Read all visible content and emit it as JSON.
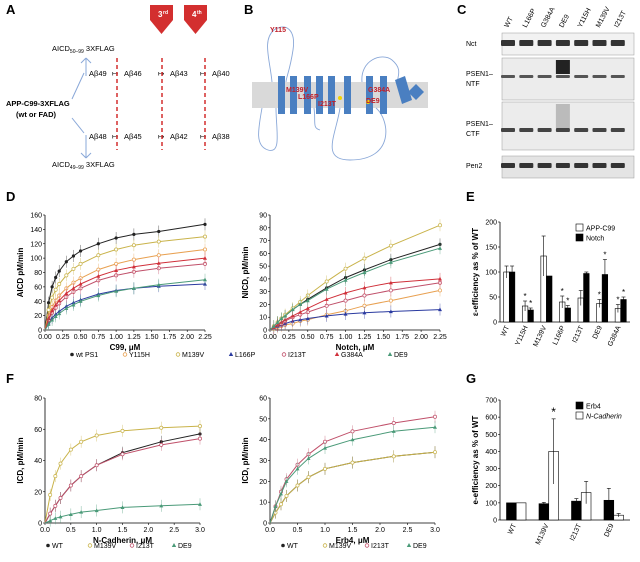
{
  "panels": {
    "A": "A",
    "B": "B",
    "C": "C",
    "D": "D",
    "E": "E",
    "F": "F",
    "G": "G"
  },
  "panelA": {
    "top_construct": "AICD",
    "top_sub": "50–99",
    "top_tag": " 3XFLAG",
    "bottom_construct": "AICD",
    "bottom_sub": "49–99",
    "bottom_tag": " 3XFLAG",
    "substrate_line1": "APP-C99-3XFLAG",
    "substrate_line2": "(wt or FAD)",
    "line_top": [
      "Aβ49",
      "Aβ46",
      "Aβ43",
      "Aβ40"
    ],
    "line_bottom": [
      "Aβ48",
      "Aβ45",
      "Aβ42",
      "Aβ38"
    ],
    "cut_labels": [
      "3",
      "4"
    ],
    "cut_sup": [
      "rd",
      "th"
    ],
    "arrow_color": "#d32f2f"
  },
  "panelB": {
    "labels": [
      "Y115",
      "M139V",
      "L166P",
      "I213T",
      "G384A",
      "DE9"
    ],
    "tm_color": "#4a7fc1"
  },
  "panelC": {
    "lanes": [
      "WT",
      "L166P",
      "G384A",
      "DE9",
      "Y115H",
      "M139V",
      "I213T"
    ],
    "rows": [
      "Nct",
      "PSEN1–\nNTF",
      "PSEN1–\nCTF",
      "Pen2"
    ],
    "row_labels": [
      "Nct",
      "PSEN1–",
      "NTF",
      "PSEN1–",
      "CTF",
      "Pen2"
    ]
  },
  "panelD_legend": [
    "wt PS1",
    "Y115H",
    "M139V",
    "L166P",
    "I213T",
    "G384A",
    "DE9"
  ],
  "panelF_left_legend": [
    "WT",
    "M139V",
    "I213T",
    "DE9"
  ],
  "panelF_right_legend": [
    "WT",
    "M139V",
    "I213T",
    "DE9"
  ],
  "series_colors": {
    "wt": "#222222",
    "Y115H": "#e8a050",
    "M139V": "#c9b34a",
    "L166P": "#2a3aa0",
    "I213T": "#c0506a",
    "G384A": "#d0303a",
    "DE9": "#4a9a78"
  },
  "chart_data": [
    {
      "type": "line",
      "id": "D-left",
      "xlabel": "C99, μM",
      "ylabel": "AICD pM/min",
      "xlim": [
        0,
        2.25
      ],
      "ylim": [
        0,
        160
      ],
      "xticks": [
        "0.00",
        "0.25",
        "0.50",
        "0.75",
        "1.00",
        "1.25",
        "1.50",
        "1.75",
        "2.00",
        "2.25"
      ],
      "yticks": [
        "0",
        "20",
        "40",
        "60",
        "80",
        "100",
        "120",
        "140",
        "160"
      ],
      "x": [
        0.05,
        0.1,
        0.15,
        0.2,
        0.3,
        0.4,
        0.5,
        0.75,
        1.0,
        1.25,
        1.6,
        2.25
      ],
      "series": [
        {
          "name": "wt PS1",
          "values": [
            38,
            60,
            73,
            82,
            95,
            103,
            110,
            120,
            128,
            133,
            137,
            147
          ]
        },
        {
          "name": "Y115H",
          "values": [
            20,
            32,
            41,
            48,
            58,
            66,
            72,
            84,
            92,
            98,
            104,
            112
          ]
        },
        {
          "name": "M139V",
          "values": [
            28,
            45,
            56,
            64,
            76,
            85,
            92,
            104,
            112,
            118,
            123,
            130
          ]
        },
        {
          "name": "L166P",
          "values": [
            10,
            17,
            22,
            26,
            33,
            38,
            42,
            50,
            55,
            58,
            61,
            64
          ]
        },
        {
          "name": "I213T",
          "values": [
            14,
            24,
            31,
            37,
            46,
            53,
            58,
            69,
            76,
            81,
            86,
            92
          ]
        },
        {
          "name": "G384A",
          "values": [
            16,
            27,
            35,
            41,
            51,
            58,
            64,
            75,
            83,
            88,
            93,
            100
          ]
        },
        {
          "name": "DE9",
          "values": [
            8,
            14,
            19,
            23,
            30,
            35,
            40,
            48,
            54,
            58,
            63,
            70
          ]
        }
      ]
    },
    {
      "type": "line",
      "id": "D-right",
      "xlabel": "Notch, μM",
      "ylabel": "NICD, pM/min",
      "xlim": [
        0,
        2.25
      ],
      "ylim": [
        0,
        90
      ],
      "xticks": [
        "0.00",
        "0.25",
        "0.50",
        "0.75",
        "1.00",
        "1.25",
        "1.50",
        "1.75",
        "2.00",
        "2.25"
      ],
      "yticks": [
        "0",
        "10",
        "20",
        "30",
        "40",
        "50",
        "60",
        "70",
        "80",
        "90"
      ],
      "x": [
        0.05,
        0.1,
        0.15,
        0.2,
        0.3,
        0.4,
        0.5,
        0.75,
        1.0,
        1.25,
        1.6,
        2.25
      ],
      "series": [
        {
          "name": "wt PS1",
          "values": [
            3,
            6,
            9,
            11,
            16,
            20,
            24,
            33,
            41,
            47,
            55,
            67
          ]
        },
        {
          "name": "Y115H",
          "values": [
            1,
            2,
            3,
            4,
            5,
            7,
            8,
            12,
            15,
            19,
            23,
            31
          ]
        },
        {
          "name": "M139V",
          "values": [
            3,
            6,
            9,
            12,
            17,
            22,
            27,
            38,
            48,
            56,
            66,
            82
          ]
        },
        {
          "name": "L166P",
          "values": [
            1.5,
            3,
            4,
            5,
            7,
            8,
            9,
            11,
            12.5,
            13.5,
            14.5,
            16
          ]
        },
        {
          "name": "I213T",
          "values": [
            2,
            4,
            5,
            7,
            10,
            12,
            14,
            19,
            23,
            27,
            31,
            37
          ]
        },
        {
          "name": "G384A",
          "values": [
            2,
            4,
            6,
            8,
            11,
            14,
            17,
            24,
            29,
            33,
            37,
            40
          ]
        },
        {
          "name": "DE9",
          "values": [
            3,
            6,
            9,
            11,
            16,
            20,
            23,
            32,
            39,
            45,
            53,
            64
          ]
        }
      ]
    },
    {
      "type": "bar",
      "id": "E",
      "ylabel": "ε-efficiency as % of WT",
      "ylim": [
        0,
        200
      ],
      "yticks": [
        "0",
        "50",
        "100",
        "150",
        "200"
      ],
      "categories": [
        "WT",
        "Y115H",
        "M139V",
        "L166P",
        "I213T",
        "DE9",
        "G384A"
      ],
      "legend": [
        "APP-C99",
        "Notch"
      ],
      "series": [
        {
          "name": "APP-C99",
          "values": [
            100,
            32,
            132,
            40,
            48,
            37,
            27
          ],
          "errors": [
            12,
            10,
            40,
            12,
            15,
            8,
            8
          ]
        },
        {
          "name": "Notch",
          "values": [
            100,
            24,
            92,
            28,
            97,
            95,
            45
          ],
          "errors": [
            12,
            4,
            0,
            5,
            3,
            30,
            5
          ]
        }
      ],
      "stars_index": [
        1,
        3,
        5,
        6
      ]
    },
    {
      "type": "line",
      "id": "F-left",
      "xlabel": "N-Cadherin, μM",
      "ylabel": "ICD, pM/min",
      "xlim": [
        0,
        3.0
      ],
      "ylim": [
        0,
        80
      ],
      "xticks": [
        "0.0",
        "0.5",
        "1.0",
        "1.5",
        "2.0",
        "2.5",
        "3.0"
      ],
      "yticks": [
        "0",
        "20",
        "40",
        "60",
        "80"
      ],
      "x": [
        0.1,
        0.2,
        0.3,
        0.5,
        0.7,
        1.0,
        1.5,
        2.25,
        3.0
      ],
      "series": [
        {
          "name": "WT",
          "values": [
            6,
            11,
            16,
            24,
            30,
            37,
            45,
            52,
            57
          ]
        },
        {
          "name": "M139V",
          "values": [
            18,
            30,
            38,
            47,
            52,
            56,
            59,
            61,
            62
          ]
        },
        {
          "name": "I213T",
          "values": [
            6,
            11,
            16,
            24,
            30,
            37,
            44,
            50,
            54
          ]
        },
        {
          "name": "DE9",
          "values": [
            1.5,
            3,
            4,
            5.5,
            7,
            8,
            10,
            11,
            12
          ]
        }
      ]
    },
    {
      "type": "line",
      "id": "F-right",
      "xlabel": "Erb4, μM",
      "ylabel": "ICD, pM/min",
      "xlim": [
        0,
        3.0
      ],
      "ylim": [
        0,
        60
      ],
      "xticks": [
        "0.0",
        "0.5",
        "1.0",
        "1.5",
        "2.0",
        "2.5",
        "3.0"
      ],
      "yticks": [
        "0",
        "10",
        "20",
        "30",
        "40",
        "50",
        "60"
      ],
      "x": [
        0.1,
        0.2,
        0.3,
        0.5,
        0.7,
        1.0,
        1.5,
        2.25,
        3.0
      ],
      "series": [
        {
          "name": "WT",
          "values": [
            5,
            9,
            13,
            18,
            22,
            26,
            29,
            32,
            34
          ]
        },
        {
          "name": "M139V",
          "values": [
            5,
            9,
            13,
            18,
            22,
            26,
            29,
            32,
            34
          ]
        },
        {
          "name": "I213T",
          "values": [
            8,
            15,
            21,
            28,
            33,
            39,
            44,
            48,
            51
          ]
        },
        {
          "name": "DE9",
          "values": [
            8,
            14,
            20,
            26,
            31,
            36,
            40,
            44,
            46
          ]
        }
      ]
    },
    {
      "type": "bar",
      "id": "G",
      "ylabel": "e-efficiency as % of WT",
      "ylim": [
        0,
        700
      ],
      "yticks": [
        "0",
        "100",
        "200",
        "300",
        "400",
        "500",
        "600",
        "700"
      ],
      "categories": [
        "WT",
        "M139V",
        "I213T",
        "DE9"
      ],
      "legend": [
        "Erb4",
        "N-Cadherin"
      ],
      "series": [
        {
          "name": "Erb4",
          "values": [
            100,
            95,
            110,
            115
          ],
          "errors": [
            0,
            8,
            15,
            70
          ]
        },
        {
          "name": "N-Cadherin",
          "values": [
            100,
            400,
            160,
            28
          ],
          "errors": [
            0,
            190,
            65,
            10
          ]
        }
      ],
      "stars_index": [
        1
      ]
    }
  ]
}
